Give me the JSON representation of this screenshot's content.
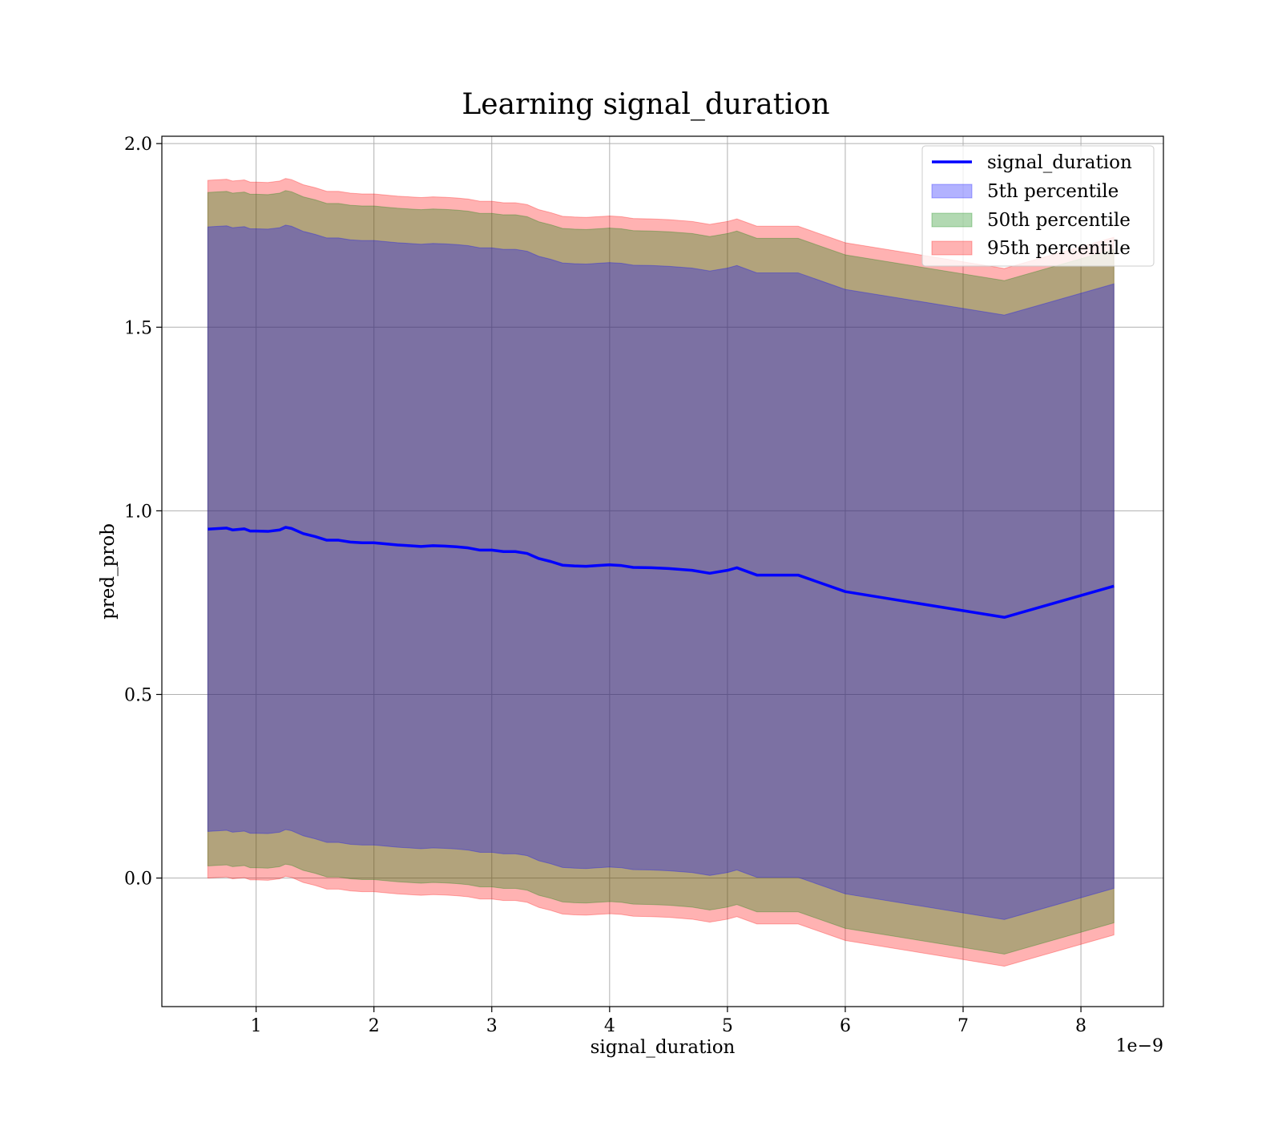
{
  "chart_data": {
    "type": "line",
    "title": "Learning signal_duration",
    "xlabel": "signal_duration",
    "ylabel": "pred_prob",
    "x_offset_label": "1e−9",
    "xlim": [
      0.2,
      8.7
    ],
    "ylim": [
      -0.35,
      2.02
    ],
    "x_ticks": [
      1,
      2,
      3,
      4,
      5,
      6,
      7,
      8
    ],
    "x_tick_labels": [
      "1",
      "2",
      "3",
      "4",
      "5",
      "6",
      "7",
      "8"
    ],
    "y_ticks": [
      0.0,
      0.5,
      1.0,
      1.5,
      2.0
    ],
    "y_tick_labels": [
      "0.0",
      "0.5",
      "1.0",
      "1.5",
      "2.0"
    ],
    "grid": true,
    "legend_position": "top-right",
    "x": [
      0.59,
      0.75,
      0.8,
      0.9,
      0.95,
      1.0,
      1.1,
      1.2,
      1.25,
      1.3,
      1.4,
      1.5,
      1.6,
      1.7,
      1.8,
      1.9,
      2.0,
      2.1,
      2.2,
      2.3,
      2.4,
      2.5,
      2.6,
      2.7,
      2.8,
      2.9,
      3.0,
      3.1,
      3.2,
      3.3,
      3.4,
      3.5,
      3.6,
      3.7,
      3.8,
      3.9,
      4.0,
      4.1,
      4.2,
      4.35,
      4.5,
      4.7,
      4.85,
      5.0,
      5.08,
      5.25,
      5.6,
      6.0,
      7.35,
      8.28
    ],
    "series": [
      {
        "name": "signal_duration",
        "kind": "line",
        "color": "#0000ff",
        "values": [
          0.95,
          0.953,
          0.948,
          0.951,
          0.945,
          0.945,
          0.944,
          0.948,
          0.955,
          0.952,
          0.938,
          0.93,
          0.92,
          0.92,
          0.915,
          0.913,
          0.913,
          0.91,
          0.907,
          0.905,
          0.903,
          0.905,
          0.904,
          0.902,
          0.899,
          0.893,
          0.893,
          0.889,
          0.889,
          0.884,
          0.87,
          0.862,
          0.852,
          0.85,
          0.849,
          0.851,
          0.853,
          0.851,
          0.846,
          0.845,
          0.843,
          0.838,
          0.83,
          0.838,
          0.845,
          0.825,
          0.825,
          0.78,
          0.71,
          0.795
        ]
      },
      {
        "name": "5th percentile",
        "kind": "band",
        "color": "#0000ff",
        "lower": [
          0.127,
          0.13,
          0.125,
          0.128,
          0.122,
          0.122,
          0.121,
          0.125,
          0.132,
          0.129,
          0.115,
          0.107,
          0.097,
          0.097,
          0.092,
          0.09,
          0.09,
          0.087,
          0.084,
          0.082,
          0.08,
          0.082,
          0.081,
          0.079,
          0.076,
          0.07,
          0.07,
          0.066,
          0.066,
          0.061,
          0.047,
          0.039,
          0.029,
          0.027,
          0.026,
          0.028,
          0.03,
          0.028,
          0.023,
          0.022,
          0.02,
          0.015,
          0.007,
          0.015,
          0.022,
          0.002,
          0.002,
          -0.043,
          -0.113,
          -0.028
        ],
        "upper": [
          1.773,
          1.776,
          1.771,
          1.774,
          1.768,
          1.768,
          1.767,
          1.771,
          1.778,
          1.775,
          1.761,
          1.753,
          1.743,
          1.743,
          1.738,
          1.736,
          1.736,
          1.733,
          1.73,
          1.728,
          1.726,
          1.728,
          1.727,
          1.725,
          1.722,
          1.716,
          1.716,
          1.712,
          1.712,
          1.707,
          1.693,
          1.685,
          1.675,
          1.673,
          1.672,
          1.674,
          1.676,
          1.674,
          1.669,
          1.668,
          1.666,
          1.661,
          1.653,
          1.661,
          1.668,
          1.648,
          1.648,
          1.603,
          1.533,
          1.618
        ]
      },
      {
        "name": "50th percentile",
        "kind": "band",
        "color": "#008000",
        "lower": [
          0.033,
          0.036,
          0.031,
          0.034,
          0.028,
          0.028,
          0.027,
          0.031,
          0.038,
          0.035,
          0.021,
          0.013,
          0.003,
          0.003,
          -0.002,
          -0.004,
          -0.004,
          -0.007,
          -0.01,
          -0.012,
          -0.014,
          -0.012,
          -0.013,
          -0.015,
          -0.018,
          -0.024,
          -0.024,
          -0.028,
          -0.028,
          -0.033,
          -0.047,
          -0.055,
          -0.065,
          -0.067,
          -0.068,
          -0.066,
          -0.064,
          -0.066,
          -0.071,
          -0.072,
          -0.074,
          -0.079,
          -0.087,
          -0.079,
          -0.072,
          -0.092,
          -0.092,
          -0.137,
          -0.207,
          -0.122
        ],
        "upper": [
          1.867,
          1.87,
          1.865,
          1.868,
          1.862,
          1.862,
          1.861,
          1.865,
          1.872,
          1.869,
          1.855,
          1.847,
          1.837,
          1.837,
          1.832,
          1.83,
          1.83,
          1.827,
          1.824,
          1.822,
          1.82,
          1.822,
          1.821,
          1.819,
          1.816,
          1.81,
          1.81,
          1.806,
          1.806,
          1.801,
          1.787,
          1.779,
          1.769,
          1.767,
          1.766,
          1.768,
          1.77,
          1.768,
          1.763,
          1.762,
          1.76,
          1.755,
          1.747,
          1.755,
          1.762,
          1.742,
          1.742,
          1.697,
          1.627,
          1.712
        ]
      },
      {
        "name": "95th percentile",
        "kind": "band",
        "color": "#ff0000",
        "lower": [
          0.0,
          0.003,
          -0.002,
          0.001,
          -0.005,
          -0.005,
          -0.006,
          -0.002,
          0.005,
          0.002,
          -0.012,
          -0.02,
          -0.03,
          -0.03,
          -0.035,
          -0.037,
          -0.037,
          -0.04,
          -0.043,
          -0.045,
          -0.047,
          -0.045,
          -0.046,
          -0.048,
          -0.051,
          -0.057,
          -0.057,
          -0.061,
          -0.061,
          -0.066,
          -0.08,
          -0.088,
          -0.098,
          -0.1,
          -0.101,
          -0.099,
          -0.097,
          -0.099,
          -0.104,
          -0.105,
          -0.107,
          -0.112,
          -0.12,
          -0.112,
          -0.105,
          -0.125,
          -0.125,
          -0.17,
          -0.24,
          -0.155
        ],
        "upper": [
          1.9,
          1.903,
          1.898,
          1.901,
          1.895,
          1.895,
          1.894,
          1.898,
          1.905,
          1.902,
          1.888,
          1.88,
          1.87,
          1.87,
          1.865,
          1.863,
          1.863,
          1.86,
          1.857,
          1.855,
          1.853,
          1.855,
          1.854,
          1.852,
          1.849,
          1.843,
          1.843,
          1.839,
          1.839,
          1.834,
          1.82,
          1.812,
          1.802,
          1.8,
          1.799,
          1.801,
          1.803,
          1.801,
          1.796,
          1.795,
          1.793,
          1.788,
          1.78,
          1.788,
          1.795,
          1.775,
          1.775,
          1.73,
          1.66,
          1.745
        ]
      }
    ]
  }
}
